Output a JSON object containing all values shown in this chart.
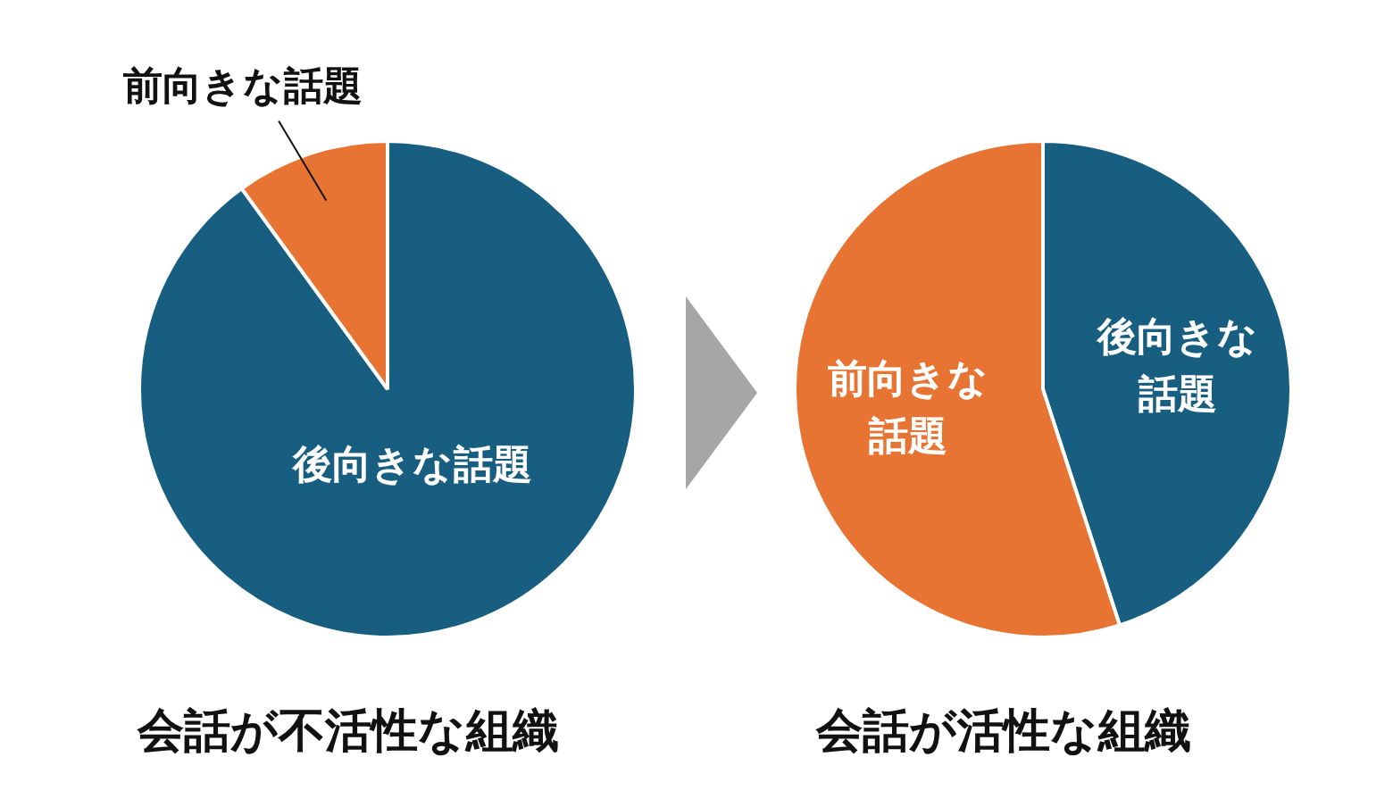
{
  "chart_data": [
    {
      "type": "pie",
      "title": "会話が不活性な組織",
      "categories": [
        "後向きな話題",
        "前向きな話題"
      ],
      "values": [
        90,
        10
      ],
      "colors": [
        "#175e80",
        "#e87434"
      ],
      "legend": false
    },
    {
      "type": "pie",
      "title": "会話が活性な組織",
      "categories": [
        "後向きな話題",
        "前向きな話題"
      ],
      "values": [
        45,
        55
      ],
      "colors": [
        "#175e80",
        "#e87434"
      ],
      "legend": false
    }
  ]
}
